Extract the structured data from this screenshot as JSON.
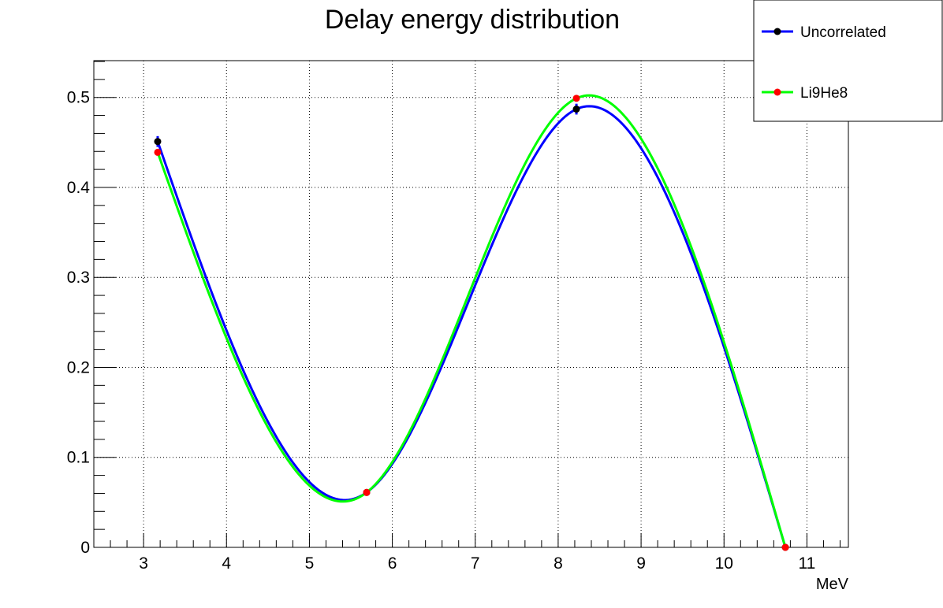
{
  "chart_data": {
    "type": "line",
    "title": "Delay energy distribution",
    "xlabel": "MeV",
    "ylabel": "",
    "xlim": [
      2.4,
      11.5
    ],
    "ylim": [
      0,
      0.54
    ],
    "x_ticks": [
      3,
      4,
      5,
      6,
      7,
      8,
      9,
      10,
      11
    ],
    "y_ticks": [
      0,
      0.1,
      0.2,
      0.3,
      0.4,
      0.5
    ],
    "x_tick_labels": [
      "3",
      "4",
      "5",
      "6",
      "7",
      "8",
      "9",
      "10",
      "11"
    ],
    "y_tick_labels": [
      "0",
      "0.1",
      "0.2",
      "0.3",
      "0.4",
      "0.5"
    ],
    "grid": true,
    "legend_position": "top-right",
    "series": [
      {
        "name": "Uncorrelated",
        "line_color": "#0000ff",
        "marker_color": "#000000",
        "x": [
          3.17,
          5.69,
          8.22,
          10.74
        ],
        "y": [
          0.451,
          0.061,
          0.487,
          0.0
        ],
        "y_err": [
          0.006,
          0.003,
          0.006,
          0.0
        ]
      },
      {
        "name": "Li9He8",
        "line_color": "#00ff00",
        "marker_color": "#ff0000",
        "x": [
          3.17,
          5.69,
          8.22,
          10.74
        ],
        "y": [
          0.439,
          0.061,
          0.499,
          0.0
        ],
        "y_err": [
          0.0,
          0.0,
          0.0,
          0.0
        ]
      }
    ]
  }
}
